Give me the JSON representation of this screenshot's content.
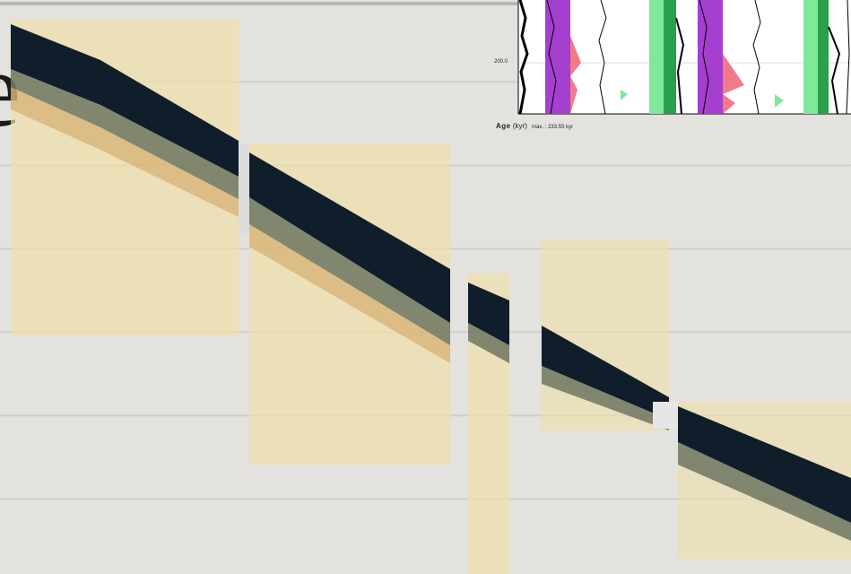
{
  "slide": {
    "partial_title_char": "e"
  },
  "strat_chart": {
    "y_tick": "200.0",
    "age_axis_label": "Age",
    "age_axis_unit": "(kyr)",
    "age_max": "max. : 233.55 kyr"
  },
  "colors": {
    "sediment": "#0f1e2a",
    "sand": "#f0dfa6",
    "purple": "#a43fd0",
    "green": "#7fe89a",
    "pink": "#f07a88"
  },
  "icons": []
}
